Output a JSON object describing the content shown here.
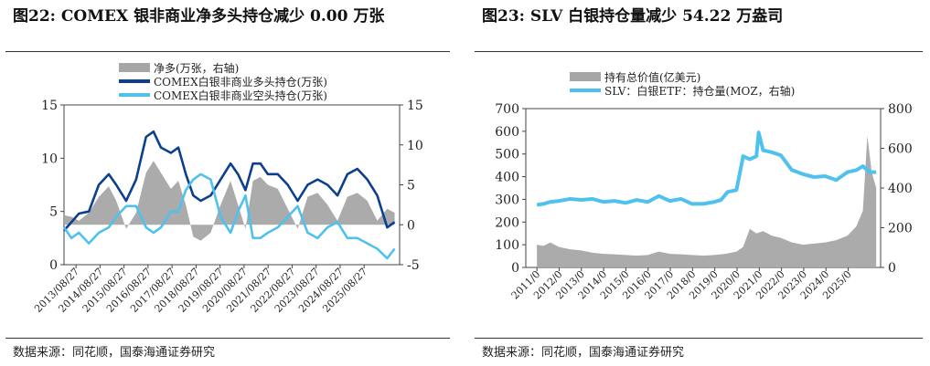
{
  "left": {
    "title": "图22:  COMEX 银非商业净多头持仓减少  0.00  万张",
    "source": "数据来源：同花顺，国泰海通证券研究",
    "chart_data": {
      "type": "area+line",
      "legend_position": "top",
      "legend": [
        "净多(万张，右轴)",
        "COMEX白银非商业多头持仓(万张)",
        "COMEX白银非商业空头持仓(万张)"
      ],
      "x_ticks": [
        "2013/08/27",
        "2014/08/27",
        "2015/08/27",
        "2016/08/27",
        "2017/08/27",
        "2018/08/27",
        "2019/08/27",
        "2020/08/27",
        "2021/08/27",
        "2022/08/27",
        "2023/08/27",
        "2024/08/27",
        "2025/08/27"
      ],
      "y_left": {
        "ticks": [
          0,
          5,
          10,
          15
        ],
        "range": [
          0,
          15
        ]
      },
      "y_right": {
        "ticks": [
          -5,
          0,
          5,
          10,
          15
        ],
        "range": [
          -5,
          15
        ]
      },
      "x_range": [
        2013.0,
        2026.5
      ],
      "series": [
        {
          "name": "净多(万张，右轴)",
          "axis": "right",
          "kind": "area",
          "color": "#a6a6a6",
          "x": [
            2013.0,
            2013.3,
            2013.6,
            2014.0,
            2014.4,
            2014.8,
            2015.1,
            2015.5,
            2015.9,
            2016.3,
            2016.6,
            2016.9,
            2017.3,
            2017.6,
            2017.9,
            2018.2,
            2018.5,
            2018.9,
            2019.3,
            2019.7,
            2020.0,
            2020.3,
            2020.6,
            2020.9,
            2021.2,
            2021.6,
            2022.0,
            2022.4,
            2022.8,
            2023.2,
            2023.6,
            2024.0,
            2024.4,
            2024.8,
            2025.2,
            2025.6,
            2026.0,
            2026.3
          ],
          "y": [
            1.2,
            1.0,
            0.5,
            1.5,
            3.5,
            4.8,
            3.0,
            -0.5,
            1.5,
            6.5,
            8.0,
            6.5,
            4.5,
            5.5,
            2.5,
            -1.5,
            -2.0,
            -1.0,
            2.5,
            5.5,
            2.5,
            -0.5,
            5.5,
            6.0,
            5.0,
            4.5,
            2.0,
            -0.5,
            3.5,
            4.0,
            2.5,
            0.5,
            3.5,
            4.0,
            3.0,
            0.5,
            2.0,
            1.5
          ]
        },
        {
          "name": "COMEX白银非商业多头持仓(万张)",
          "axis": "left",
          "kind": "line",
          "color": "#0d3f8f",
          "x": [
            2013.0,
            2013.3,
            2013.6,
            2014.0,
            2014.4,
            2014.8,
            2015.1,
            2015.5,
            2015.9,
            2016.3,
            2016.6,
            2016.9,
            2017.3,
            2017.6,
            2017.9,
            2018.2,
            2018.5,
            2018.9,
            2019.3,
            2019.7,
            2020.0,
            2020.3,
            2020.6,
            2020.9,
            2021.2,
            2021.6,
            2022.0,
            2022.4,
            2022.8,
            2023.2,
            2023.6,
            2024.0,
            2024.4,
            2024.8,
            2025.2,
            2025.6,
            2026.0,
            2026.3
          ],
          "y": [
            3.2,
            4.0,
            4.8,
            5.0,
            7.5,
            8.5,
            7.5,
            6.0,
            8.0,
            12.0,
            12.5,
            11.0,
            10.5,
            11.0,
            8.5,
            6.5,
            6.0,
            6.5,
            8.0,
            9.5,
            8.5,
            7.0,
            9.5,
            9.5,
            8.5,
            8.5,
            7.5,
            6.0,
            7.5,
            8.0,
            7.5,
            6.5,
            8.5,
            9.0,
            8.0,
            6.5,
            3.5,
            4.0
          ]
        },
        {
          "name": "COMEX白银非商业空头持仓(万张)",
          "axis": "left",
          "kind": "line",
          "color": "#4fc1ee",
          "x": [
            2013.0,
            2013.3,
            2013.6,
            2014.0,
            2014.4,
            2014.8,
            2015.1,
            2015.5,
            2015.9,
            2016.3,
            2016.6,
            2016.9,
            2017.3,
            2017.6,
            2017.9,
            2018.2,
            2018.5,
            2018.9,
            2019.3,
            2019.7,
            2020.0,
            2020.3,
            2020.6,
            2020.9,
            2021.2,
            2021.6,
            2022.0,
            2022.4,
            2022.8,
            2023.2,
            2023.6,
            2024.0,
            2024.4,
            2024.8,
            2025.2,
            2025.6,
            2026.0,
            2026.3
          ],
          "y": [
            3.5,
            2.5,
            3.0,
            2.0,
            3.0,
            3.5,
            4.5,
            5.5,
            5.5,
            3.5,
            3.0,
            3.5,
            5.0,
            5.0,
            7.0,
            8.0,
            8.5,
            8.0,
            4.5,
            3.0,
            5.0,
            6.5,
            2.5,
            2.5,
            3.0,
            3.5,
            4.5,
            5.5,
            3.0,
            2.5,
            3.5,
            4.0,
            2.5,
            2.5,
            2.0,
            1.5,
            0.6,
            1.5
          ]
        }
      ]
    }
  },
  "right": {
    "title": "图23:  SLV 白银持仓量减少  54.22  万盎司",
    "source": "数据来源：同花顺，国泰海通证券研究",
    "chart_data": {
      "type": "area+line",
      "legend_position": "top",
      "legend": [
        "持有总价值(亿美元)",
        "SLV：白银ETF：持仓量(MOZ，右轴)"
      ],
      "x_ticks": [
        "2011/0",
        "2012/0",
        "2013/0",
        "2014/0",
        "2015/0",
        "2016/0",
        "2017/0",
        "2018/0",
        "2019/0",
        "2020/0",
        "2021/0",
        "2022/0",
        "2023/0",
        "2024/0",
        "2025/0"
      ],
      "y_left": {
        "ticks": [
          0,
          100,
          200,
          300,
          400,
          500,
          600,
          700
        ],
        "range": [
          0,
          700
        ]
      },
      "y_right": {
        "ticks": [
          0,
          200,
          400,
          600,
          800
        ],
        "range": [
          0,
          800
        ]
      },
      "x_range": [
        2010.5,
        2026.5
      ],
      "series": [
        {
          "name": "持有总价值(亿美元)",
          "axis": "left",
          "kind": "area",
          "color": "#a6a6a6",
          "x": [
            2011.0,
            2011.3,
            2011.6,
            2012.0,
            2012.5,
            2013.0,
            2013.5,
            2014.0,
            2014.5,
            2015.0,
            2015.5,
            2016.0,
            2016.5,
            2017.0,
            2017.5,
            2018.0,
            2018.5,
            2019.0,
            2019.5,
            2020.0,
            2020.3,
            2020.6,
            2020.9,
            2021.2,
            2021.6,
            2022.0,
            2022.5,
            2023.0,
            2023.5,
            2024.0,
            2024.5,
            2025.0,
            2025.4,
            2025.7,
            2025.9,
            2026.1,
            2026.3
          ],
          "y": [
            100,
            95,
            110,
            90,
            80,
            75,
            65,
            60,
            58,
            55,
            52,
            55,
            70,
            60,
            58,
            55,
            52,
            55,
            60,
            70,
            90,
            170,
            150,
            160,
            140,
            130,
            110,
            100,
            105,
            110,
            120,
            140,
            180,
            250,
            580,
            420,
            350
          ]
        },
        {
          "name": "SLV：白银ETF：持仓量(MOZ，右轴)",
          "axis": "right",
          "kind": "line",
          "color": "#4fc1ee",
          "x": [
            2011.0,
            2011.3,
            2011.6,
            2012.0,
            2012.5,
            2013.0,
            2013.5,
            2014.0,
            2014.5,
            2015.0,
            2015.5,
            2016.0,
            2016.5,
            2017.0,
            2017.5,
            2018.0,
            2018.5,
            2019.0,
            2019.3,
            2019.6,
            2020.0,
            2020.3,
            2020.6,
            2020.9,
            2021.0,
            2021.2,
            2021.6,
            2022.0,
            2022.5,
            2023.0,
            2023.5,
            2024.0,
            2024.5,
            2025.0,
            2025.4,
            2025.7,
            2026.0,
            2026.3
          ],
          "y": [
            315,
            320,
            330,
            335,
            345,
            340,
            345,
            330,
            335,
            325,
            340,
            330,
            360,
            335,
            345,
            320,
            320,
            330,
            340,
            380,
            390,
            560,
            545,
            560,
            680,
            590,
            580,
            565,
            490,
            470,
            455,
            460,
            440,
            480,
            490,
            510,
            480,
            480
          ]
        }
      ]
    }
  }
}
